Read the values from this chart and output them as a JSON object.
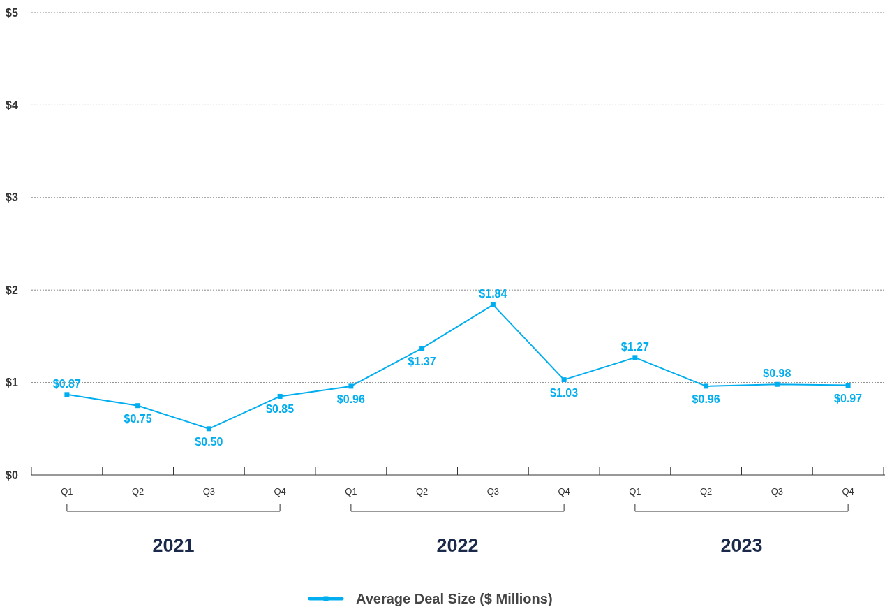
{
  "chart_data": {
    "type": "line",
    "categories": [
      "Q1",
      "Q2",
      "Q3",
      "Q4",
      "Q1",
      "Q2",
      "Q3",
      "Q4",
      "Q1",
      "Q2",
      "Q3",
      "Q4"
    ],
    "series": [
      {
        "name": "Average Deal Size ($ Millions)",
        "color": "#00aeef",
        "values": [
          0.87,
          0.75,
          0.5,
          0.85,
          0.96,
          1.37,
          1.84,
          1.03,
          1.27,
          0.96,
          0.98,
          0.97
        ],
        "value_labels": [
          "$0.87",
          "$0.75",
          "$0.50",
          "$0.85",
          "$0.96",
          "$1.37",
          "$1.84",
          "$1.03",
          "$1.27",
          "$0.96",
          "$0.98",
          "$0.97"
        ]
      }
    ],
    "ylim": [
      0,
      5
    ],
    "yticks": [
      {
        "value": 0,
        "label": "$0"
      },
      {
        "value": 1,
        "label": "$1"
      },
      {
        "value": 2,
        "label": "$2"
      },
      {
        "value": 3,
        "label": "$3"
      },
      {
        "value": 4,
        "label": "$4"
      },
      {
        "value": 5,
        "label": "$5"
      }
    ],
    "annotations": [
      "2021",
      "2022",
      "2023"
    ],
    "grid": "y",
    "legend": "bottom",
    "marker": "square",
    "line_style": "solid"
  }
}
